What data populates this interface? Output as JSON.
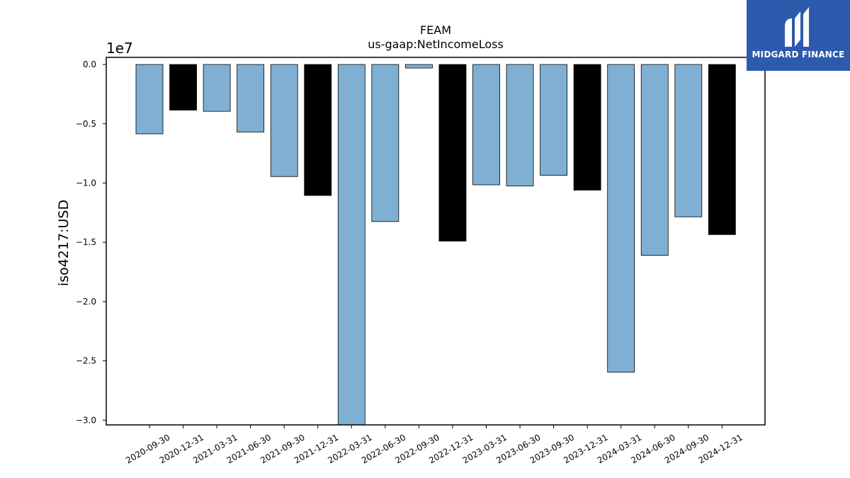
{
  "chart_data": {
    "type": "bar",
    "title": "FEAM",
    "subtitle": "us-gaap:NetIncomeLoss",
    "xlabel": "",
    "ylabel": "iso4217:USD",
    "y_offset_label": "1e7",
    "ylim": [
      -30400000,
      600000
    ],
    "yticks": [
      {
        "value": 0,
        "label": "0.0"
      },
      {
        "value": -5000000,
        "label": "−0.5"
      },
      {
        "value": -10000000,
        "label": "−1.0"
      },
      {
        "value": -15000000,
        "label": "−1.5"
      },
      {
        "value": -20000000,
        "label": "−2.0"
      },
      {
        "value": -25000000,
        "label": "−2.5"
      },
      {
        "value": -30000000,
        "label": "−3.0"
      }
    ],
    "categories": [
      "2020-09-30",
      "2020-12-31",
      "2021-03-31",
      "2021-06-30",
      "2021-09-30",
      "2021-12-31",
      "2022-03-31",
      "2022-06-30",
      "2022-09-30",
      "2022-12-31",
      "2023-03-31",
      "2023-06-30",
      "2023-09-30",
      "2023-12-31",
      "2024-03-31",
      "2024-06-30",
      "2024-09-30",
      "2024-12-31"
    ],
    "values": [
      -5850000,
      -3850000,
      -3950000,
      -5700000,
      -9450000,
      -11050000,
      -30400000,
      -13250000,
      -300000,
      -14900000,
      -10150000,
      -10250000,
      -9350000,
      -10600000,
      -25950000,
      -16100000,
      -12850000,
      -14350000
    ],
    "bar_colors": [
      "#7fb0d4",
      "#000000",
      "#7fb0d4",
      "#7fb0d4",
      "#7fb0d4",
      "#000000",
      "#7fb0d4",
      "#7fb0d4",
      "#7fb0d4",
      "#000000",
      "#7fb0d4",
      "#7fb0d4",
      "#7fb0d4",
      "#000000",
      "#7fb0d4",
      "#7fb0d4",
      "#7fb0d4",
      "#000000"
    ],
    "grid": false
  },
  "logo": {
    "text": "MIDGARD FINANCE",
    "background": "#2d5aad"
  }
}
